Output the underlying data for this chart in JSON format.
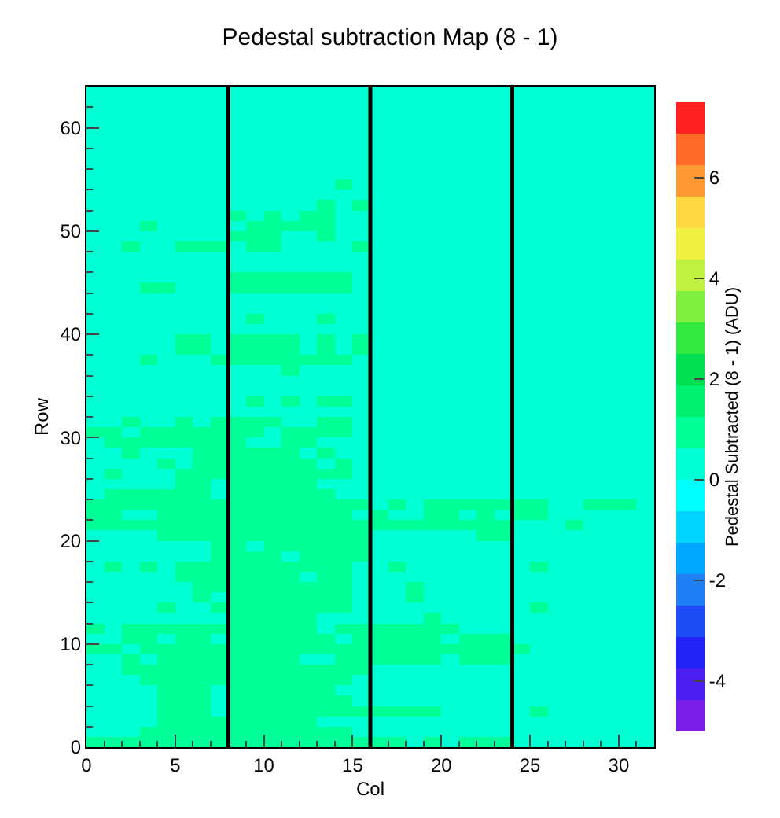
{
  "chart_data": {
    "type": "heatmap",
    "title": "Pedestal subtraction Map (8 - 1)",
    "xlabel": "Col",
    "ylabel": "Row",
    "clabel": "Pedestal Subtracted (8 - 1) (ADU)",
    "xlim": [
      0,
      32
    ],
    "xticks": [
      0,
      5,
      10,
      15,
      20,
      25,
      30
    ],
    "ylim": [
      0,
      64
    ],
    "yticks": [
      0,
      10,
      20,
      30,
      40,
      50,
      60
    ],
    "clim": [
      -5,
      7.5
    ],
    "cticks": [
      -4,
      -2,
      0,
      2,
      4,
      6
    ],
    "ref_lines": [
      {
        "axis": "x",
        "value": 8,
        "color": "#000000"
      },
      {
        "axis": "x",
        "value": 16,
        "color": "#000000"
      },
      {
        "axis": "x",
        "value": 24,
        "color": "#000000"
      }
    ],
    "cells": [
      [
        0.3,
        0.3,
        0.3,
        0.3,
        0.3,
        0.3,
        0.3,
        0.3,
        0.3,
        0.3,
        0.3,
        0.3,
        0.3,
        0.3,
        0.3,
        0.3,
        0.3,
        0.3,
        0.3,
        0.3,
        0.3,
        0.3,
        0.3,
        0.3,
        0.3,
        0.3,
        0.3,
        0.3,
        0.3,
        0.3,
        0.3,
        0.3
      ],
      [
        0.3,
        0.3,
        0.3,
        0.3,
        0.3,
        0.3,
        0.3,
        0.3,
        0.3,
        0.3,
        0.3,
        0.3,
        0.3,
        0.3,
        0.3,
        0.3,
        0.3,
        0.3,
        0.3,
        0.3,
        0.3,
        0.3,
        0.3,
        0.3,
        0.3,
        0.3,
        0.3,
        0.3,
        0.3,
        0.3,
        0.3,
        0.3
      ],
      [
        0.3,
        0.3,
        0.3,
        0.3,
        0.3,
        0.3,
        0.3,
        0.3,
        0.3,
        0.3,
        0.3,
        0.3,
        0.3,
        0.3,
        0.3,
        0.3,
        0.3,
        0.3,
        0.3,
        0.3,
        0.3,
        0.3,
        0.3,
        0.3,
        0.3,
        0.3,
        0.3,
        0.3,
        0.3,
        0.3,
        0.3,
        0.3
      ],
      [
        0.3,
        0.3,
        0.3,
        0.3,
        0.3,
        0.3,
        0.3,
        0.3,
        0.3,
        0.3,
        0.3,
        0.3,
        0.3,
        0.3,
        0.3,
        0.3,
        0.3,
        0.3,
        0.3,
        0.3,
        0.3,
        0.3,
        0.3,
        0.3,
        0.3,
        0.3,
        0.3,
        0.3,
        0.3,
        0.3,
        0.3,
        0.3
      ],
      [
        0.3,
        0.3,
        0.3,
        0.3,
        0.3,
        0.3,
        0.3,
        0.3,
        0.3,
        0.3,
        0.3,
        0.3,
        0.3,
        0.3,
        0.3,
        0.3,
        0.3,
        0.3,
        0.3,
        0.3,
        0.3,
        0.3,
        0.3,
        0.3,
        0.3,
        0.3,
        0.3,
        0.3,
        0.3,
        0.3,
        0.3,
        0.3
      ],
      [
        0.3,
        0.3,
        0.3,
        0.3,
        0.3,
        0.3,
        0.3,
        0.3,
        0.3,
        0.3,
        0.3,
        0.3,
        0.3,
        0.3,
        0.3,
        0.3,
        0.3,
        0.3,
        0.3,
        0.3,
        0.3,
        0.3,
        0.3,
        0.3,
        0.3,
        0.3,
        0.3,
        0.3,
        0.3,
        0.3,
        0.3,
        0.3
      ],
      [
        0.3,
        0.3,
        0.3,
        0.3,
        0.3,
        0.3,
        0.3,
        0.3,
        0.3,
        0.3,
        0.3,
        0.3,
        0.3,
        0.3,
        0.3,
        0.3,
        0.3,
        0.3,
        0.3,
        0.3,
        0.3,
        0.3,
        0.3,
        0.3,
        0.3,
        0.3,
        0.3,
        0.3,
        0.3,
        0.3,
        0.3,
        0.3
      ],
      [
        0.3,
        0.3,
        0.3,
        0.3,
        0.3,
        0.3,
        0.3,
        0.3,
        0.3,
        0.3,
        0.3,
        0.3,
        0.3,
        0.3,
        0.3,
        0.3,
        0.3,
        0.3,
        0.3,
        0.3,
        0.3,
        0.3,
        0.3,
        0.3,
        0.3,
        0.3,
        0.3,
        0.3,
        0.3,
        0.3,
        0.3,
        0.3
      ],
      [
        0.3,
        0.3,
        0.3,
        0.3,
        0.3,
        0.3,
        0.3,
        0.3,
        0.3,
        0.3,
        0.3,
        0.3,
        0.3,
        0.3,
        0.3,
        0.3,
        0.3,
        0.3,
        0.3,
        0.3,
        0.3,
        0.3,
        0.3,
        0.3,
        0.3,
        0.3,
        0.3,
        0.3,
        0.3,
        0.3,
        0.3,
        0.3
      ],
      [
        0.3,
        0.3,
        0.3,
        0.3,
        0.3,
        0.3,
        0.3,
        0.3,
        0.3,
        0.3,
        0.3,
        0.3,
        0.3,
        0.3,
        0.9,
        0.3,
        0.3,
        0.3,
        0.3,
        0.3,
        0.3,
        0.3,
        0.3,
        0.3,
        0.3,
        0.3,
        0.3,
        0.3,
        0.3,
        0.3,
        0.3,
        0.3
      ],
      [
        0.3,
        0.3,
        0.3,
        0.3,
        0.3,
        0.3,
        0.3,
        0.3,
        0.3,
        0.3,
        0.3,
        0.3,
        0.3,
        0.3,
        0.3,
        0.3,
        0.3,
        0.3,
        0.3,
        0.3,
        0.3,
        0.3,
        0.3,
        0.3,
        0.3,
        0.3,
        0.3,
        0.3,
        0.3,
        0.3,
        0.3,
        0.3
      ],
      [
        0.3,
        0.3,
        0.3,
        0.3,
        0.3,
        0.3,
        0.3,
        0.3,
        0.3,
        0.3,
        0.3,
        0.3,
        0.3,
        0.9,
        0.3,
        0.9,
        0.3,
        0.3,
        0.3,
        0.3,
        0.3,
        0.3,
        0.3,
        0.3,
        0.3,
        0.3,
        0.3,
        0.3,
        0.3,
        0.3,
        0.3,
        0.3
      ],
      [
        0.3,
        0.3,
        0.3,
        0.3,
        0.3,
        0.3,
        0.3,
        0.3,
        0.9,
        0.3,
        0.9,
        0.3,
        0.9,
        0.9,
        0.3,
        0.3,
        0.3,
        0.3,
        0.3,
        0.3,
        0.3,
        0.3,
        0.3,
        0.3,
        0.3,
        0.3,
        0.3,
        0.3,
        0.3,
        0.3,
        0.3,
        0.3
      ],
      [
        0.3,
        0.3,
        0.3,
        0.9,
        0.3,
        0.3,
        0.3,
        0.3,
        0.3,
        0.9,
        0.9,
        0.9,
        0.9,
        0.9,
        0.3,
        0.3,
        0.3,
        0.3,
        0.3,
        0.3,
        0.3,
        0.3,
        0.3,
        0.3,
        0.3,
        0.3,
        0.3,
        0.3,
        0.3,
        0.3,
        0.3,
        0.3
      ],
      [
        0.3,
        0.3,
        0.3,
        0.3,
        0.3,
        0.3,
        0.3,
        0.3,
        0.9,
        0.9,
        0.9,
        0.3,
        0.3,
        0.9,
        0.3,
        0.3,
        0.3,
        0.3,
        0.3,
        0.3,
        0.3,
        0.3,
        0.3,
        0.3,
        0.3,
        0.3,
        0.3,
        0.3,
        0.3,
        0.3,
        0.3,
        0.3
      ],
      [
        0.3,
        0.3,
        0.9,
        0.3,
        0.3,
        0.9,
        0.9,
        0.9,
        0.3,
        0.9,
        0.9,
        0.3,
        0.3,
        0.3,
        0.3,
        0.9,
        0.3,
        0.3,
        0.3,
        0.3,
        0.3,
        0.3,
        0.3,
        0.3,
        0.3,
        0.3,
        0.3,
        0.3,
        0.3,
        0.3,
        0.3,
        0.3
      ],
      [
        0.3,
        0.3,
        0.3,
        0.3,
        0.3,
        0.3,
        0.3,
        0.3,
        0.3,
        0.3,
        0.3,
        0.3,
        0.3,
        0.3,
        0.3,
        0.3,
        0.3,
        0.3,
        0.3,
        0.3,
        0.3,
        0.3,
        0.3,
        0.3,
        0.3,
        0.3,
        0.3,
        0.3,
        0.3,
        0.3,
        0.3,
        0.3
      ],
      [
        0.3,
        0.3,
        0.3,
        0.3,
        0.3,
        0.3,
        0.3,
        0.3,
        0.3,
        0.3,
        0.3,
        0.3,
        0.3,
        0.3,
        0.3,
        0.3,
        0.3,
        0.3,
        0.3,
        0.3,
        0.3,
        0.3,
        0.3,
        0.3,
        0.3,
        0.3,
        0.3,
        0.3,
        0.3,
        0.3,
        0.3,
        0.3
      ],
      [
        0.3,
        0.3,
        0.3,
        0.3,
        0.3,
        0.3,
        0.3,
        0.3,
        0.9,
        0.9,
        0.9,
        0.9,
        0.9,
        0.9,
        0.9,
        0.3,
        0.3,
        0.3,
        0.3,
        0.3,
        0.3,
        0.3,
        0.3,
        0.3,
        0.3,
        0.3,
        0.3,
        0.3,
        0.3,
        0.3,
        0.3,
        0.3
      ],
      [
        0.3,
        0.3,
        0.3,
        0.9,
        0.9,
        0.3,
        0.3,
        0.3,
        0.9,
        0.9,
        0.9,
        0.9,
        0.9,
        0.9,
        0.9,
        0.3,
        0.3,
        0.3,
        0.3,
        0.3,
        0.3,
        0.3,
        0.3,
        0.3,
        0.3,
        0.3,
        0.3,
        0.3,
        0.3,
        0.3,
        0.3,
        0.3
      ],
      [
        0.3,
        0.3,
        0.3,
        0.3,
        0.3,
        0.3,
        0.3,
        0.3,
        0.3,
        0.3,
        0.3,
        0.3,
        0.3,
        0.3,
        0.3,
        0.3,
        0.3,
        0.3,
        0.3,
        0.3,
        0.3,
        0.3,
        0.3,
        0.3,
        0.3,
        0.3,
        0.3,
        0.3,
        0.3,
        0.3,
        0.3,
        0.3
      ],
      [
        0.3,
        0.3,
        0.3,
        0.3,
        0.3,
        0.3,
        0.3,
        0.3,
        0.3,
        0.3,
        0.3,
        0.3,
        0.3,
        0.3,
        0.3,
        0.3,
        0.3,
        0.3,
        0.3,
        0.3,
        0.3,
        0.3,
        0.3,
        0.3,
        0.3,
        0.3,
        0.3,
        0.3,
        0.3,
        0.3,
        0.3,
        0.3
      ],
      [
        0.3,
        0.3,
        0.3,
        0.3,
        0.3,
        0.3,
        0.3,
        0.3,
        0.3,
        0.9,
        0.3,
        0.3,
        0.3,
        0.9,
        0.3,
        0.3,
        0.3,
        0.3,
        0.3,
        0.3,
        0.3,
        0.3,
        0.3,
        0.3,
        0.3,
        0.3,
        0.3,
        0.3,
        0.3,
        0.3,
        0.3,
        0.3
      ],
      [
        0.3,
        0.3,
        0.3,
        0.3,
        0.3,
        0.3,
        0.3,
        0.3,
        0.3,
        0.3,
        0.3,
        0.3,
        0.3,
        0.3,
        0.3,
        0.3,
        0.3,
        0.3,
        0.3,
        0.3,
        0.3,
        0.3,
        0.3,
        0.3,
        0.3,
        0.3,
        0.3,
        0.3,
        0.3,
        0.3,
        0.3,
        0.3
      ],
      [
        0.3,
        0.3,
        0.3,
        0.3,
        0.3,
        0.9,
        0.9,
        0.3,
        0.9,
        0.9,
        0.9,
        0.9,
        0.3,
        0.9,
        0.3,
        0.9,
        0.3,
        0.3,
        0.3,
        0.3,
        0.3,
        0.3,
        0.3,
        0.3,
        0.3,
        0.3,
        0.3,
        0.3,
        0.3,
        0.3,
        0.3,
        0.3
      ],
      [
        0.3,
        0.3,
        0.3,
        0.3,
        0.3,
        0.9,
        0.9,
        0.3,
        0.9,
        0.9,
        0.9,
        0.9,
        0.3,
        0.9,
        0.3,
        0.9,
        0.3,
        0.3,
        0.3,
        0.3,
        0.3,
        0.3,
        0.3,
        0.3,
        0.3,
        0.3,
        0.3,
        0.3,
        0.3,
        0.3,
        0.3,
        0.3
      ],
      [
        0.3,
        0.3,
        0.3,
        0.9,
        0.3,
        0.3,
        0.3,
        0.9,
        0.9,
        0.9,
        0.9,
        0.9,
        0.9,
        0.9,
        0.9,
        0.3,
        0.3,
        0.3,
        0.3,
        0.3,
        0.3,
        0.3,
        0.3,
        0.3,
        0.3,
        0.3,
        0.3,
        0.3,
        0.3,
        0.3,
        0.3,
        0.3
      ],
      [
        0.3,
        0.3,
        0.3,
        0.3,
        0.3,
        0.3,
        0.3,
        0.3,
        0.3,
        0.3,
        0.3,
        0.9,
        0.3,
        0.3,
        0.3,
        0.3,
        0.3,
        0.3,
        0.3,
        0.3,
        0.3,
        0.3,
        0.3,
        0.3,
        0.3,
        0.3,
        0.3,
        0.3,
        0.3,
        0.3,
        0.3,
        0.3
      ],
      [
        0.3,
        0.3,
        0.3,
        0.3,
        0.3,
        0.3,
        0.3,
        0.3,
        0.3,
        0.3,
        0.3,
        0.3,
        0.3,
        0.3,
        0.3,
        0.3,
        0.3,
        0.3,
        0.3,
        0.3,
        0.3,
        0.3,
        0.3,
        0.3,
        0.3,
        0.3,
        0.3,
        0.3,
        0.3,
        0.3,
        0.3,
        0.3
      ],
      [
        0.3,
        0.3,
        0.3,
        0.3,
        0.3,
        0.3,
        0.3,
        0.3,
        0.3,
        0.3,
        0.3,
        0.3,
        0.3,
        0.3,
        0.3,
        0.3,
        0.3,
        0.3,
        0.3,
        0.3,
        0.3,
        0.3,
        0.3,
        0.3,
        0.3,
        0.3,
        0.3,
        0.3,
        0.3,
        0.3,
        0.3,
        0.3
      ],
      [
        0.3,
        0.3,
        0.3,
        0.3,
        0.3,
        0.3,
        0.3,
        0.3,
        0.3,
        0.9,
        0.3,
        0.9,
        0.3,
        0.9,
        0.9,
        0.3,
        0.3,
        0.3,
        0.3,
        0.3,
        0.3,
        0.3,
        0.3,
        0.3,
        0.3,
        0.3,
        0.3,
        0.3,
        0.3,
        0.3,
        0.3,
        0.3
      ],
      [
        0.3,
        0.3,
        0.3,
        0.3,
        0.3,
        0.3,
        0.3,
        0.3,
        0.3,
        0.3,
        0.3,
        0.3,
        0.3,
        0.3,
        0.3,
        0.3,
        0.3,
        0.3,
        0.3,
        0.3,
        0.3,
        0.3,
        0.3,
        0.3,
        0.3,
        0.3,
        0.3,
        0.3,
        0.3,
        0.3,
        0.3,
        0.3
      ],
      [
        0.3,
        0.3,
        0.9,
        0.3,
        0.3,
        0.9,
        0.3,
        0.9,
        0.9,
        0.9,
        0.9,
        0.3,
        0.3,
        0.9,
        0.9,
        0.3,
        0.3,
        0.3,
        0.3,
        0.3,
        0.3,
        0.3,
        0.3,
        0.3,
        0.3,
        0.3,
        0.3,
        0.3,
        0.3,
        0.3,
        0.3,
        0.3
      ],
      [
        0.9,
        0.9,
        0.3,
        0.9,
        0.9,
        0.9,
        0.9,
        0.9,
        0.9,
        0.9,
        0.3,
        0.9,
        0.9,
        0.9,
        0.9,
        0.3,
        0.3,
        0.3,
        0.3,
        0.3,
        0.3,
        0.3,
        0.3,
        0.3,
        0.3,
        0.3,
        0.3,
        0.3,
        0.3,
        0.3,
        0.3,
        0.3
      ],
      [
        0.3,
        0.9,
        0.9,
        0.9,
        0.9,
        0.9,
        0.9,
        0.9,
        0.9,
        0.3,
        0.3,
        0.9,
        0.9,
        0.3,
        0.3,
        0.3,
        0.3,
        0.3,
        0.3,
        0.3,
        0.3,
        0.3,
        0.3,
        0.3,
        0.3,
        0.3,
        0.3,
        0.3,
        0.3,
        0.3,
        0.3,
        0.3
      ],
      [
        0.3,
        0.3,
        0.9,
        0.3,
        0.3,
        0.3,
        0.9,
        0.9,
        0.9,
        0.9,
        0.9,
        0.9,
        0.3,
        0.9,
        0.3,
        0.3,
        0.3,
        0.3,
        0.3,
        0.3,
        0.3,
        0.3,
        0.3,
        0.3,
        0.3,
        0.3,
        0.3,
        0.3,
        0.3,
        0.3,
        0.3,
        0.3
      ],
      [
        0.3,
        0.3,
        0.3,
        0.3,
        0.9,
        0.3,
        0.9,
        0.9,
        0.9,
        0.9,
        0.9,
        0.9,
        0.9,
        0.3,
        0.9,
        0.3,
        0.3,
        0.3,
        0.3,
        0.3,
        0.3,
        0.3,
        0.3,
        0.3,
        0.3,
        0.3,
        0.3,
        0.3,
        0.3,
        0.3,
        0.3,
        0.3
      ],
      [
        0.3,
        0.9,
        0.3,
        0.3,
        0.3,
        0.9,
        0.9,
        0.9,
        0.9,
        0.9,
        0.9,
        0.9,
        0.9,
        0.9,
        0.9,
        0.3,
        0.3,
        0.3,
        0.3,
        0.3,
        0.3,
        0.3,
        0.3,
        0.3,
        0.3,
        0.3,
        0.3,
        0.3,
        0.3,
        0.3,
        0.3,
        0.3
      ],
      [
        0.3,
        0.3,
        0.3,
        0.3,
        0.3,
        0.9,
        0.9,
        0.3,
        0.9,
        0.9,
        0.9,
        0.9,
        0.9,
        0.3,
        0.3,
        0.3,
        0.3,
        0.3,
        0.3,
        0.3,
        0.3,
        0.3,
        0.3,
        0.3,
        0.3,
        0.3,
        0.3,
        0.3,
        0.3,
        0.3,
        0.3,
        0.3
      ],
      [
        0.3,
        0.9,
        0.9,
        0.9,
        0.9,
        0.9,
        0.9,
        0.3,
        0.9,
        0.9,
        0.9,
        0.9,
        0.9,
        0.9,
        0.3,
        0.3,
        0.3,
        0.3,
        0.3,
        0.3,
        0.3,
        0.3,
        0.3,
        0.3,
        0.3,
        0.3,
        0.3,
        0.3,
        0.3,
        0.3,
        0.3,
        0.3
      ],
      [
        0.9,
        0.9,
        0.9,
        0.9,
        0.9,
        0.9,
        0.9,
        0.9,
        0.9,
        0.9,
        0.9,
        0.9,
        0.9,
        0.9,
        0.9,
        0.9,
        0.3,
        0.9,
        0.3,
        0.9,
        0.9,
        0.9,
        0.9,
        0.9,
        0.9,
        0.9,
        0.3,
        0.3,
        0.9,
        0.9,
        0.9,
        0.3
      ],
      [
        0.9,
        0.9,
        0.3,
        0.3,
        0.9,
        0.9,
        0.9,
        0.9,
        0.9,
        0.9,
        0.9,
        0.9,
        0.9,
        0.9,
        0.9,
        0.3,
        0.9,
        0.3,
        0.3,
        0.9,
        0.9,
        0.3,
        0.9,
        0.3,
        0.9,
        0.9,
        0.3,
        0.3,
        0.3,
        0.3,
        0.3,
        0.3
      ],
      [
        0.9,
        0.9,
        0.9,
        0.9,
        0.9,
        0.9,
        0.9,
        0.9,
        0.9,
        0.9,
        0.9,
        0.9,
        0.9,
        0.9,
        0.9,
        0.9,
        0.9,
        0.9,
        0.9,
        0.9,
        0.9,
        0.9,
        0.9,
        0.9,
        0.3,
        0.3,
        0.3,
        0.9,
        0.3,
        0.3,
        0.3,
        0.3
      ],
      [
        0.3,
        0.3,
        0.3,
        0.3,
        0.9,
        0.9,
        0.9,
        0.9,
        0.9,
        0.9,
        0.9,
        0.9,
        0.9,
        0.9,
        0.9,
        0.9,
        0.3,
        0.3,
        0.3,
        0.3,
        0.3,
        0.3,
        0.9,
        0.9,
        0.3,
        0.3,
        0.3,
        0.3,
        0.3,
        0.3,
        0.3,
        0.3
      ],
      [
        0.3,
        0.3,
        0.3,
        0.3,
        0.3,
        0.3,
        0.3,
        0.9,
        0.9,
        0.3,
        0.9,
        0.9,
        0.9,
        0.9,
        0.9,
        0.9,
        0.3,
        0.3,
        0.3,
        0.3,
        0.3,
        0.3,
        0.3,
        0.3,
        0.3,
        0.3,
        0.3,
        0.3,
        0.3,
        0.3,
        0.3,
        0.3
      ],
      [
        0.3,
        0.3,
        0.3,
        0.3,
        0.3,
        0.3,
        0.3,
        0.9,
        0.9,
        0.9,
        0.9,
        0.3,
        0.9,
        0.9,
        0.9,
        0.9,
        0.3,
        0.3,
        0.3,
        0.3,
        0.3,
        0.3,
        0.3,
        0.3,
        0.3,
        0.3,
        0.3,
        0.3,
        0.3,
        0.3,
        0.3,
        0.3
      ],
      [
        0.3,
        0.9,
        0.3,
        0.9,
        0.3,
        0.9,
        0.9,
        0.9,
        0.9,
        0.9,
        0.9,
        0.9,
        0.9,
        0.9,
        0.9,
        0.3,
        0.3,
        0.9,
        0.3,
        0.3,
        0.3,
        0.3,
        0.3,
        0.3,
        0.3,
        0.9,
        0.3,
        0.3,
        0.3,
        0.3,
        0.3,
        0.3
      ],
      [
        0.3,
        0.3,
        0.3,
        0.3,
        0.3,
        0.9,
        0.9,
        0.9,
        0.9,
        0.9,
        0.9,
        0.9,
        0.3,
        0.9,
        0.9,
        0.3,
        0.3,
        0.3,
        0.3,
        0.3,
        0.3,
        0.3,
        0.3,
        0.3,
        0.3,
        0.3,
        0.3,
        0.3,
        0.3,
        0.3,
        0.3,
        0.3
      ],
      [
        0.3,
        0.3,
        0.3,
        0.3,
        0.3,
        0.3,
        0.9,
        0.9,
        0.9,
        0.9,
        0.9,
        0.9,
        0.9,
        0.9,
        0.9,
        0.3,
        0.3,
        0.3,
        0.9,
        0.3,
        0.3,
        0.3,
        0.3,
        0.3,
        0.3,
        0.3,
        0.3,
        0.3,
        0.3,
        0.3,
        0.3,
        0.3
      ],
      [
        0.3,
        0.3,
        0.3,
        0.3,
        0.3,
        0.3,
        0.9,
        0.3,
        0.9,
        0.9,
        0.9,
        0.9,
        0.9,
        0.9,
        0.9,
        0.3,
        0.3,
        0.3,
        0.9,
        0.3,
        0.3,
        0.3,
        0.3,
        0.3,
        0.3,
        0.3,
        0.3,
        0.3,
        0.3,
        0.3,
        0.3,
        0.3
      ],
      [
        0.3,
        0.3,
        0.3,
        0.3,
        0.9,
        0.3,
        0.3,
        0.9,
        0.9,
        0.9,
        0.9,
        0.9,
        0.9,
        0.9,
        0.9,
        0.3,
        0.3,
        0.3,
        0.3,
        0.3,
        0.3,
        0.3,
        0.3,
        0.3,
        0.3,
        0.9,
        0.3,
        0.3,
        0.3,
        0.3,
        0.3,
        0.3
      ],
      [
        0.3,
        0.3,
        0.3,
        0.3,
        0.3,
        0.3,
        0.3,
        0.3,
        0.9,
        0.9,
        0.9,
        0.9,
        0.9,
        0.3,
        0.3,
        0.3,
        0.3,
        0.3,
        0.3,
        0.9,
        0.3,
        0.3,
        0.3,
        0.3,
        0.3,
        0.3,
        0.3,
        0.3,
        0.3,
        0.3,
        0.3,
        0.3
      ],
      [
        0.9,
        0.3,
        0.9,
        0.9,
        0.9,
        0.9,
        0.9,
        0.9,
        0.9,
        0.9,
        0.9,
        0.9,
        0.9,
        0.3,
        0.9,
        0.9,
        0.9,
        0.9,
        0.9,
        0.9,
        0.9,
        0.3,
        0.3,
        0.3,
        0.3,
        0.3,
        0.3,
        0.3,
        0.3,
        0.3,
        0.3,
        0.3
      ],
      [
        0.3,
        0.3,
        0.9,
        0.9,
        0.3,
        0.9,
        0.9,
        0.3,
        0.9,
        0.9,
        0.9,
        0.9,
        0.9,
        0.9,
        0.3,
        0.9,
        0.9,
        0.9,
        0.9,
        0.9,
        0.3,
        0.9,
        0.9,
        0.9,
        0.3,
        0.3,
        0.3,
        0.3,
        0.3,
        0.3,
        0.3,
        0.3
      ],
      [
        0.9,
        0.9,
        0.3,
        0.9,
        0.9,
        0.9,
        0.9,
        0.9,
        0.9,
        0.9,
        0.9,
        0.9,
        0.9,
        0.9,
        0.9,
        0.9,
        0.9,
        0.9,
        0.9,
        0.9,
        0.9,
        0.9,
        0.9,
        0.9,
        0.9,
        0.3,
        0.3,
        0.3,
        0.3,
        0.3,
        0.3,
        0.3
      ],
      [
        0.3,
        0.3,
        0.9,
        0.3,
        0.9,
        0.9,
        0.9,
        0.9,
        0.9,
        0.9,
        0.9,
        0.9,
        0.3,
        0.3,
        0.9,
        0.9,
        0.9,
        0.9,
        0.9,
        0.9,
        0.3,
        0.9,
        0.9,
        0.9,
        0.3,
        0.3,
        0.3,
        0.3,
        0.3,
        0.3,
        0.3,
        0.3
      ],
      [
        0.3,
        0.3,
        0.9,
        0.9,
        0.9,
        0.9,
        0.9,
        0.9,
        0.9,
        0.9,
        0.9,
        0.9,
        0.9,
        0.9,
        0.9,
        0.9,
        0.3,
        0.3,
        0.3,
        0.3,
        0.3,
        0.3,
        0.3,
        0.3,
        0.3,
        0.3,
        0.3,
        0.3,
        0.3,
        0.3,
        0.3,
        0.3
      ],
      [
        0.3,
        0.3,
        0.3,
        0.9,
        0.9,
        0.9,
        0.9,
        0.9,
        0.9,
        0.9,
        0.9,
        0.9,
        0.9,
        0.9,
        0.9,
        0.3,
        0.3,
        0.3,
        0.3,
        0.3,
        0.3,
        0.3,
        0.3,
        0.3,
        0.3,
        0.3,
        0.3,
        0.3,
        0.3,
        0.3,
        0.3,
        0.3
      ],
      [
        0.3,
        0.3,
        0.3,
        0.3,
        0.9,
        0.9,
        0.9,
        0.3,
        0.9,
        0.9,
        0.9,
        0.9,
        0.9,
        0.9,
        0.3,
        0.3,
        0.3,
        0.3,
        0.3,
        0.3,
        0.3,
        0.3,
        0.3,
        0.3,
        0.3,
        0.3,
        0.3,
        0.3,
        0.3,
        0.3,
        0.3,
        0.3
      ],
      [
        0.3,
        0.3,
        0.3,
        0.3,
        0.9,
        0.9,
        0.9,
        0.3,
        0.9,
        0.9,
        0.9,
        0.9,
        0.9,
        0.9,
        0.9,
        0.3,
        0.3,
        0.3,
        0.3,
        0.3,
        0.3,
        0.3,
        0.3,
        0.3,
        0.3,
        0.3,
        0.3,
        0.3,
        0.3,
        0.3,
        0.3,
        0.3
      ],
      [
        0.3,
        0.3,
        0.3,
        0.3,
        0.9,
        0.9,
        0.9,
        0.3,
        0.9,
        0.9,
        0.9,
        0.9,
        0.9,
        0.9,
        0.9,
        0.9,
        0.9,
        0.9,
        0.9,
        0.9,
        0.3,
        0.3,
        0.3,
        0.3,
        0.3,
        0.9,
        0.3,
        0.3,
        0.3,
        0.3,
        0.3,
        0.3
      ],
      [
        0.3,
        0.3,
        0.3,
        0.3,
        0.9,
        0.9,
        0.9,
        0.9,
        0.9,
        0.9,
        0.9,
        0.9,
        0.9,
        0.3,
        0.3,
        0.3,
        0.3,
        0.3,
        0.3,
        0.3,
        0.3,
        0.3,
        0.3,
        0.3,
        0.3,
        0.3,
        0.3,
        0.3,
        0.3,
        0.3,
        0.3,
        0.3
      ],
      [
        0.3,
        0.3,
        0.3,
        0.9,
        0.9,
        0.9,
        0.9,
        0.9,
        0.9,
        0.9,
        0.9,
        0.9,
        0.9,
        0.9,
        0.9,
        0.3,
        0.3,
        0.3,
        0.3,
        0.3,
        0.3,
        0.3,
        0.3,
        0.3,
        0.3,
        0.3,
        0.3,
        0.3,
        0.3,
        0.3,
        0.3,
        0.3
      ],
      [
        0.9,
        0.9,
        0.9,
        0.9,
        0.9,
        0.9,
        0.9,
        0.9,
        0.9,
        0.9,
        0.9,
        0.9,
        0.9,
        0.9,
        0.9,
        0.9,
        0.9,
        0.9,
        0.3,
        0.9,
        0.3,
        0.9,
        0.9,
        0.9,
        0.3,
        0.3,
        0.3,
        0.3,
        0.3,
        0.3,
        0.3,
        0.3
      ]
    ]
  }
}
